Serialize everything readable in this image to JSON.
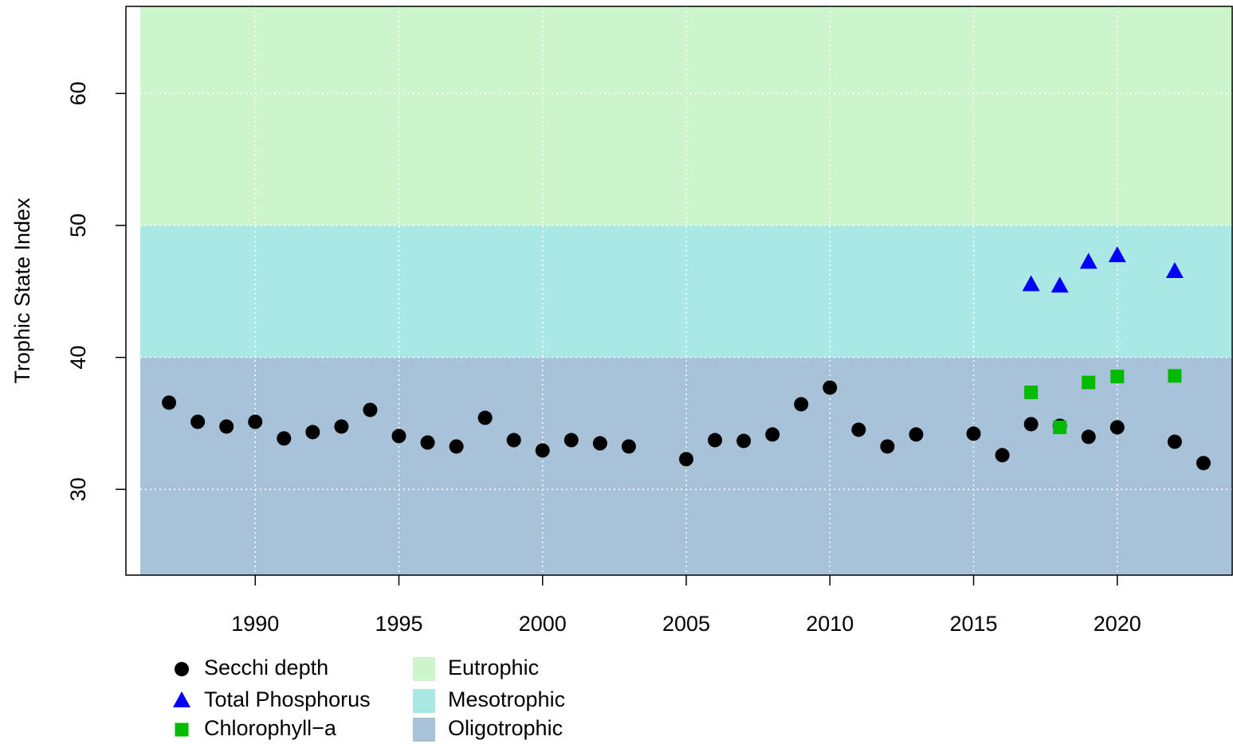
{
  "chart_data": {
    "type": "scatter",
    "y_label": "Trophic State Index",
    "xlim": [
      1985.5,
      2024.0
    ],
    "ylim": [
      23.5,
      66.6
    ],
    "xticks": [
      1990,
      1995,
      2000,
      2005,
      2010,
      2015,
      2020
    ],
    "yticks": [
      30,
      40,
      50,
      60
    ],
    "grid": true,
    "bands": [
      {
        "name": "Eutrophic",
        "color": "#ccf5cc",
        "min": 50,
        "max": null
      },
      {
        "name": "Mesotrophic",
        "color": "#aae8e6",
        "min": 40,
        "max": 50
      },
      {
        "name": "Oligotrophic",
        "color": "#a8c2da",
        "min": null,
        "max": 40
      }
    ],
    "series": [
      {
        "name": "Secchi depth",
        "color": "#000000",
        "marker": "circle",
        "x": [
          1987,
          1988,
          1989,
          1990,
          1991,
          1992,
          1993,
          1994,
          1995,
          1996,
          1997,
          1998,
          1999,
          2000,
          2001,
          2002,
          2003,
          2005,
          2006,
          2007,
          2008,
          2009,
          2010,
          2011,
          2012,
          2013,
          2015,
          2016,
          2017,
          2018,
          2019,
          2020,
          2022,
          2023
        ],
        "values": [
          36.57,
          35.12,
          34.76,
          35.12,
          33.86,
          34.34,
          34.76,
          36.02,
          34.04,
          33.55,
          33.25,
          35.42,
          33.73,
          32.95,
          33.73,
          33.49,
          33.25,
          32.29,
          33.73,
          33.67,
          34.16,
          36.45,
          37.71,
          34.52,
          33.25,
          34.16,
          34.22,
          32.59,
          34.94,
          34.82,
          33.98,
          34.7,
          33.61,
          31.99
        ]
      },
      {
        "name": "Total Phosphorus",
        "color": "#0000ff",
        "marker": "triangle",
        "x": [
          2017,
          2018,
          2019,
          2020,
          2022
        ],
        "values": [
          45.5,
          45.4,
          47.2,
          47.7,
          46.5
        ]
      },
      {
        "name": "Chlorophyll−a",
        "color": "#00bb00",
        "marker": "square",
        "x": [
          2017,
          2018,
          2019,
          2020,
          2022
        ],
        "values": [
          37.35,
          34.7,
          38.1,
          38.55,
          38.6
        ]
      }
    ]
  }
}
